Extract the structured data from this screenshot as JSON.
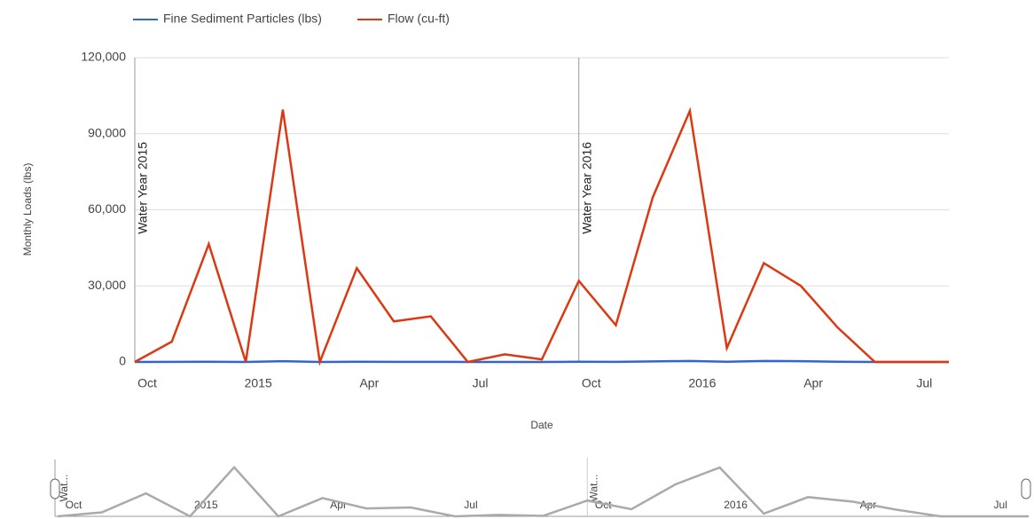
{
  "chart_data": {
    "type": "line",
    "y_label": "Monthly Loads (lbs)",
    "x_label": "Date",
    "x": [
      "2014-10",
      "2014-11",
      "2014-12",
      "2015-01",
      "2015-02",
      "2015-03",
      "2015-04",
      "2015-05",
      "2015-06",
      "2015-07",
      "2015-08",
      "2015-09",
      "2015-10",
      "2015-11",
      "2015-12",
      "2016-01",
      "2016-02",
      "2016-03",
      "2016-04",
      "2016-05",
      "2016-06",
      "2016-07",
      "2016-08"
    ],
    "series": [
      {
        "name": "Fine Sediment Particles (lbs)",
        "color": "#3366cc",
        "values": [
          0,
          50,
          100,
          0,
          300,
          0,
          100,
          50,
          50,
          0,
          0,
          0,
          100,
          50,
          200,
          400,
          100,
          400,
          300,
          100,
          0,
          0,
          0
        ]
      },
      {
        "name": "Flow (cu-ft)",
        "color": "#dc3912",
        "values": [
          0,
          8000,
          46500,
          0,
          99500,
          0,
          37000,
          16000,
          18000,
          0,
          3000,
          1000,
          32000,
          14500,
          65000,
          99000,
          5500,
          39000,
          30000,
          13500,
          0,
          0,
          0
        ]
      }
    ],
    "xlim": [
      "2014-10",
      "2016-08"
    ],
    "xticks": [
      {
        "value": "2014-10",
        "label": "Oct"
      },
      {
        "value": "2015-01",
        "label": "2015"
      },
      {
        "value": "2015-04",
        "label": "Apr"
      },
      {
        "value": "2015-07",
        "label": "Jul"
      },
      {
        "value": "2015-10",
        "label": "Oct"
      },
      {
        "value": "2016-01",
        "label": "2016"
      },
      {
        "value": "2016-04",
        "label": "Apr"
      },
      {
        "value": "2016-07",
        "label": "Jul"
      }
    ],
    "ylim": [
      0,
      120000
    ],
    "yticks": [
      0,
      {
        "value": 30000,
        "label": "30,000"
      },
      {
        "value": 60000,
        "label": "60,000"
      },
      {
        "value": 90000,
        "label": "90,000"
      },
      {
        "value": 120000,
        "label": "120,000"
      }
    ],
    "grid": true,
    "legend": "top",
    "annotations": [
      {
        "x": "2014-10",
        "text": "Water Year 2015",
        "short": "Wat..."
      },
      {
        "x": "2015-10",
        "text": "Water Year 2016",
        "short": "Wat..."
      }
    ]
  }
}
